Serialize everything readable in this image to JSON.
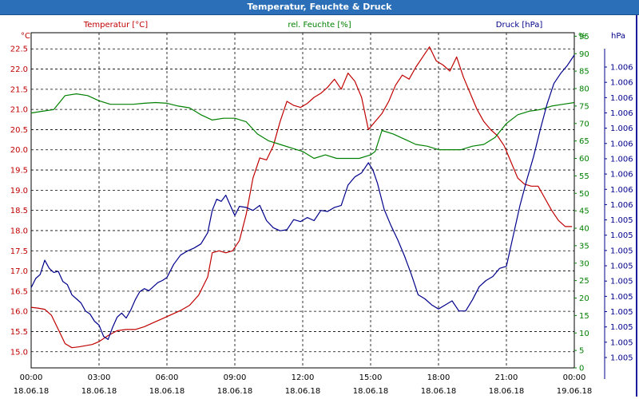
{
  "window": {
    "title": "Temperatur, Feuchte & Druck"
  },
  "chart_data": {
    "type": "line",
    "title": "Temperatur, Feuchte & Druck",
    "grid": true,
    "x_ticks": [
      {
        "time": "00:00",
        "date": "18.06.18"
      },
      {
        "time": "03:00",
        "date": "18.06.18"
      },
      {
        "time": "06:00",
        "date": "18.06.18"
      },
      {
        "time": "09:00",
        "date": "18.06.18"
      },
      {
        "time": "12:00",
        "date": "18.06.18"
      },
      {
        "time": "15:00",
        "date": "18.06.18"
      },
      {
        "time": "18:00",
        "date": "18.06.18"
      },
      {
        "time": "21:00",
        "date": "18.06.18"
      },
      {
        "time": "00:00",
        "date": "19.06.18"
      }
    ],
    "x_range_hours": [
      0,
      24
    ],
    "axes": {
      "temperature": {
        "label": "Temperatur [°C]",
        "unit": "°C",
        "color": "#c00000",
        "range": [
          14.6,
          22.9
        ],
        "ticks": [
          "15.0",
          "15.5",
          "16.0",
          "16.5",
          "17.0",
          "17.5",
          "18.0",
          "18.5",
          "19.0",
          "19.5",
          "20.0",
          "20.5",
          "21.0",
          "21.5",
          "22.0",
          "22.5"
        ]
      },
      "humidity": {
        "label": "rel. Feuchte [%]",
        "unit": "%",
        "color": "#008000",
        "range": [
          0,
          96
        ],
        "ticks": [
          "0",
          "5",
          "10",
          "15",
          "20",
          "25",
          "30",
          "35",
          "40",
          "45",
          "50",
          "55",
          "60",
          "65",
          "70",
          "75",
          "80",
          "85",
          "90",
          "95"
        ]
      },
      "pressure": {
        "label": "Druck [hPa]",
        "unit": "hPa",
        "color": "#00008b",
        "ticks": [
          "1.005",
          "1.005",
          "1.005",
          "1.005",
          "1.005",
          "1.005",
          "1.005",
          "1.005",
          "1.005",
          "1.005",
          "1.006",
          "1.006",
          "1.006",
          "1.006",
          "1.006",
          "1.006",
          "1.006",
          "1.006",
          "1.006",
          "1.006"
        ]
      }
    },
    "series": [
      {
        "name": "Temperatur [°C]",
        "axis": "temperature",
        "color": "#c00000",
        "x": [
          0,
          0.3,
          0.6,
          0.9,
          1.2,
          1.5,
          1.8,
          2.1,
          2.4,
          2.7,
          3.0,
          3.4,
          3.8,
          4.2,
          4.6,
          5.0,
          5.4,
          5.8,
          6.2,
          6.6,
          7.0,
          7.4,
          7.8,
          8.0,
          8.3,
          8.6,
          8.9,
          9.2,
          9.5,
          9.8,
          10.1,
          10.4,
          10.7,
          11.0,
          11.3,
          11.6,
          11.9,
          12.2,
          12.5,
          12.8,
          13.1,
          13.4,
          13.7,
          14.0,
          14.3,
          14.6,
          14.9,
          15.2,
          15.5,
          15.8,
          16.1,
          16.4,
          16.7,
          17.0,
          17.3,
          17.6,
          17.9,
          18.2,
          18.5,
          18.8,
          19.1,
          19.4,
          19.7,
          20.0,
          20.3,
          20.6,
          20.9,
          21.2,
          21.5,
          21.8,
          22.1,
          22.4,
          22.7,
          23.0,
          23.3,
          23.6,
          23.9
        ],
        "values": [
          16.1,
          16.08,
          16.05,
          15.9,
          15.55,
          15.2,
          15.1,
          15.12,
          15.15,
          15.18,
          15.25,
          15.4,
          15.52,
          15.55,
          15.55,
          15.62,
          15.72,
          15.82,
          15.92,
          16.02,
          16.15,
          16.4,
          16.85,
          17.45,
          17.5,
          17.45,
          17.5,
          17.75,
          18.4,
          19.3,
          19.8,
          19.75,
          20.1,
          20.7,
          21.2,
          21.1,
          21.05,
          21.15,
          21.3,
          21.4,
          21.55,
          21.75,
          21.5,
          21.9,
          21.7,
          21.3,
          20.5,
          20.7,
          20.9,
          21.2,
          21.6,
          21.85,
          21.75,
          22.05,
          22.3,
          22.55,
          22.2,
          22.1,
          21.95,
          22.3,
          21.8,
          21.4,
          21.0,
          20.7,
          20.5,
          20.35,
          20.1,
          19.7,
          19.3,
          19.15,
          19.1,
          19.1,
          18.8,
          18.5,
          18.25,
          18.1,
          18.1
        ]
      },
      {
        "name": "rel. Feuchte [%]",
        "axis": "humidity",
        "color": "#008000",
        "x": [
          0,
          0.5,
          1.0,
          1.5,
          2.0,
          2.5,
          3.0,
          3.5,
          4.0,
          4.5,
          5.0,
          5.5,
          6.0,
          6.5,
          7.0,
          7.5,
          8.0,
          8.5,
          9.0,
          9.5,
          10.0,
          10.5,
          11.0,
          11.5,
          12.0,
          12.5,
          13.0,
          13.5,
          14.0,
          14.5,
          15.0,
          15.2,
          15.5,
          16.0,
          16.5,
          17.0,
          17.5,
          18.0,
          18.5,
          19.0,
          19.5,
          20.0,
          20.5,
          21.0,
          21.5,
          22.0,
          22.5,
          23.0,
          23.5,
          24.0
        ],
        "values": [
          73,
          73.5,
          74,
          78,
          78.5,
          78,
          76.5,
          75.5,
          75.5,
          75.5,
          75.8,
          76,
          75.8,
          75,
          74.5,
          72.5,
          71,
          71.5,
          71.5,
          70.5,
          67,
          65,
          64,
          63,
          62,
          60,
          61,
          60,
          60,
          60,
          61,
          62,
          68,
          67,
          65.5,
          64,
          63.5,
          62.5,
          62.5,
          62.5,
          63.5,
          64,
          66,
          70,
          72.5,
          73.5,
          74,
          75,
          75.5,
          76
        ]
      },
      {
        "name": "Druck [hPa]",
        "axis": "pressure",
        "color": "#00008b",
        "x": [
          0,
          0.2,
          0.4,
          0.6,
          0.8,
          1.0,
          1.2,
          1.4,
          1.6,
          1.8,
          2.0,
          2.2,
          2.4,
          2.6,
          2.8,
          3.0,
          3.2,
          3.4,
          3.6,
          3.8,
          4.0,
          4.2,
          4.4,
          4.6,
          4.8,
          5.0,
          5.2,
          5.4,
          5.6,
          5.8,
          6.0,
          6.3,
          6.6,
          6.9,
          7.2,
          7.5,
          7.8,
          8.0,
          8.2,
          8.4,
          8.6,
          8.8,
          9.0,
          9.2,
          9.5,
          9.8,
          10.1,
          10.4,
          10.7,
          11.0,
          11.3,
          11.6,
          11.9,
          12.2,
          12.5,
          12.8,
          13.1,
          13.4,
          13.7,
          14.0,
          14.3,
          14.6,
          14.9,
          15.1,
          15.3,
          15.6,
          15.9,
          16.2,
          16.5,
          16.8,
          17.1,
          17.4,
          17.7,
          18.0,
          18.3,
          18.6,
          18.9,
          19.2,
          19.5,
          19.8,
          20.1,
          20.4,
          20.7,
          21.0,
          21.3,
          21.6,
          21.9,
          22.2,
          22.5,
          22.8,
          23.1,
          23.4,
          23.7,
          24.0
        ],
        "values": [
          1.00509,
          1.00518,
          1.00522,
          1.00536,
          1.00528,
          1.00524,
          1.00525,
          1.00515,
          1.00512,
          1.00502,
          1.00498,
          1.00494,
          1.00486,
          1.00483,
          1.00476,
          1.00472,
          1.00461,
          1.00458,
          1.0047,
          1.0048,
          1.00484,
          1.00479,
          1.00487,
          1.00497,
          1.00505,
          1.00508,
          1.00506,
          1.0051,
          1.00514,
          1.00516,
          1.00519,
          1.00532,
          1.00541,
          1.00545,
          1.00548,
          1.00552,
          1.00563,
          1.00585,
          1.00596,
          1.00594,
          1.006,
          1.0059,
          1.0058,
          1.00589,
          1.00588,
          1.00585,
          1.0059,
          1.00575,
          1.00568,
          1.00565,
          1.00566,
          1.00576,
          1.00574,
          1.00578,
          1.00575,
          1.00585,
          1.00584,
          1.00588,
          1.0059,
          1.0061,
          1.00618,
          1.00622,
          1.00632,
          1.00625,
          1.00612,
          1.00586,
          1.0057,
          1.00556,
          1.0054,
          1.00522,
          1.00502,
          1.00498,
          1.00492,
          1.00488,
          1.00492,
          1.00496,
          1.00486,
          1.00486,
          1.00497,
          1.0051,
          1.00516,
          1.0052,
          1.00528,
          1.0053,
          1.0056,
          1.0059,
          1.00615,
          1.00638,
          1.00665,
          1.0069,
          1.0071,
          1.0072,
          1.00728,
          1.00738
        ]
      }
    ],
    "pressure_range": [
      1.0043,
      1.0076
    ]
  }
}
